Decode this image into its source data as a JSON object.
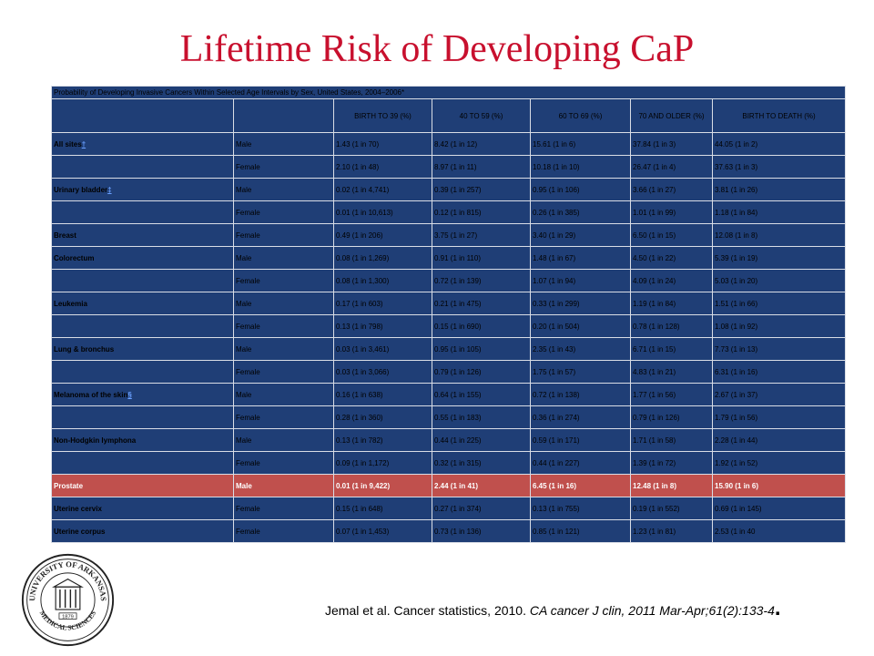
{
  "slide": {
    "title": "Lifetime Risk of Developing CaP",
    "citation": "Jemal et al. Cancer statistics, 2010.",
    "citation_journal": "CA cancer J clin, 2011 Mar-Apr;61(2):133-4",
    "citation_period": ".",
    "logo_text": "UNIVERSITY OF ARKANSAS MEDICAL SCIENCES 1879"
  },
  "table": {
    "caption": "Probability of Developing Invasive Cancers Within Selected Age Intervals by Sex, United States, 2004–2006*",
    "headers": [
      "",
      "",
      "BIRTH TO 39 (%)",
      "40 TO 59 (%)",
      "60 TO 69 (%)",
      "70 AND OLDER (%)",
      "BIRTH TO DEATH (%)"
    ],
    "rows": [
      {
        "site": "All sites",
        "mark": "†",
        "sex": "Male",
        "v": [
          "1.43 (1 in 70)",
          "8.42 (1 in 12)",
          "15.61 (1 in 6)",
          "37.84 (1 in 3)",
          "44.05 (1 in 2)"
        ]
      },
      {
        "site": "",
        "mark": "",
        "sex": "Female",
        "v": [
          "2.10 (1 in 48)",
          "8.97 (1 in 11)",
          "10.18 (1 in 10)",
          "26.47 (1 in 4)",
          "37.63 (1 in 3)"
        ]
      },
      {
        "site": "Urinary bladder",
        "mark": "‡",
        "sex": "Male",
        "v": [
          "0.02 (1 in 4,741)",
          "0.39 (1 in 257)",
          "0.95 (1 in 106)",
          "3.66 (1 in 27)",
          "3.81 (1 in 26)"
        ]
      },
      {
        "site": "",
        "mark": "",
        "sex": "Female",
        "v": [
          "0.01 (1 in 10,613)",
          "0.12 (1 in 815)",
          "0.26 (1 in 385)",
          "1.01 (1 in 99)",
          "1.18 (1 in 84)"
        ]
      },
      {
        "site": "Breast",
        "mark": "",
        "sex": "Female",
        "v": [
          "0.49 (1 in 206)",
          "3.75 (1 in 27)",
          "3.40 (1 in 29)",
          "6.50 (1 in 15)",
          "12.08 (1 in 8)"
        ]
      },
      {
        "site": "Colorectum",
        "mark": "",
        "sex": "Male",
        "v": [
          "0.08 (1 in 1,269)",
          "0.91 (1 in 110)",
          "1.48 (1 in 67)",
          "4.50 (1 in 22)",
          "5.39 (1 in 19)"
        ]
      },
      {
        "site": "",
        "mark": "",
        "sex": "Female",
        "v": [
          "0.08 (1 in 1,300)",
          "0.72 (1 in 139)",
          "1.07 (1 in 94)",
          "4.09 (1 in 24)",
          "5.03 (1 in 20)"
        ]
      },
      {
        "site": "Leukemia",
        "mark": "",
        "sex": "Male",
        "v": [
          "0.17 (1 in 603)",
          "0.21 (1 in 475)",
          "0.33 (1 in 299)",
          "1.19 (1 in 84)",
          "1.51 (1 in 66)"
        ]
      },
      {
        "site": "",
        "mark": "",
        "sex": "Female",
        "v": [
          "0.13 (1 in 798)",
          "0.15 (1 in 690)",
          "0.20 (1 in 504)",
          "0.78 (1 in 128)",
          "1.08 (1 in 92)"
        ]
      },
      {
        "site": "Lung & bronchus",
        "mark": "",
        "sex": "Male",
        "v": [
          "0.03 (1 in 3,461)",
          "0.95 (1 in 105)",
          "2.35 (1 in 43)",
          "6.71 (1 in 15)",
          "7.73 (1 in 13)"
        ]
      },
      {
        "site": "",
        "mark": "",
        "sex": "Female",
        "v": [
          "0.03 (1 in 3,066)",
          "0.79 (1 in 126)",
          "1.75 (1 in 57)",
          "4.83 (1 in 21)",
          "6.31 (1 in 16)"
        ]
      },
      {
        "site": "Melanoma of the skin",
        "mark": "§",
        "sex": "Male",
        "v": [
          "0.16 (1 in 638)",
          "0.64 (1 in 155)",
          "0.72 (1 in 138)",
          "1.77 (1 in 56)",
          "2.67 (1 in 37)"
        ]
      },
      {
        "site": "",
        "mark": "",
        "sex": "Female",
        "v": [
          "0.28 (1 in 360)",
          "0.55 (1 in 183)",
          "0.36 (1 in 274)",
          "0.79 (1 in 126)",
          "1.79 (1 in 56)"
        ]
      },
      {
        "site": "Non-Hodgkin lymphona",
        "mark": "",
        "sex": "Male",
        "v": [
          "0.13 (1 in 782)",
          "0.44 (1 in 225)",
          "0.59 (1 in 171)",
          "1.71 (1 in 58)",
          "2.28 (1 in 44)"
        ]
      },
      {
        "site": "",
        "mark": "",
        "sex": "Female",
        "v": [
          "0.09 (1 in 1,172)",
          "0.32 (1 in 315)",
          "0.44 (1 in 227)",
          "1.39 (1 in 72)",
          "1.92 (1 in 52)"
        ]
      },
      {
        "site": "Prostate",
        "mark": "",
        "sex": "Male",
        "highlight": true,
        "v": [
          "0.01 (1 in 9,422)",
          "2.44 (1 in 41)",
          "6.45 (1 in 16)",
          "12.48 (1 in 8)",
          "15.90 (1 in 6)"
        ]
      },
      {
        "site": "Uterine cervix",
        "mark": "",
        "sex": "Female",
        "v": [
          "0.15 (1 in 648)",
          "0.27 (1 in 374)",
          "0.13 (1 in 755)",
          "0.19 (1 in 552)",
          "0.69 (1 in 145)"
        ]
      },
      {
        "site": "Uterine corpus",
        "mark": "",
        "sex": "Female",
        "v": [
          "0.07 (1 in 1,453)",
          "0.73 (1 in 136)",
          "0.85 (1 in 121)",
          "1.23 (1 in 81)",
          "2.53 (1 in 40"
        ]
      }
    ]
  },
  "colors": {
    "title": "#c8102e",
    "cell_bg": "#1f3e76",
    "highlight_bg": "#c0504d"
  }
}
